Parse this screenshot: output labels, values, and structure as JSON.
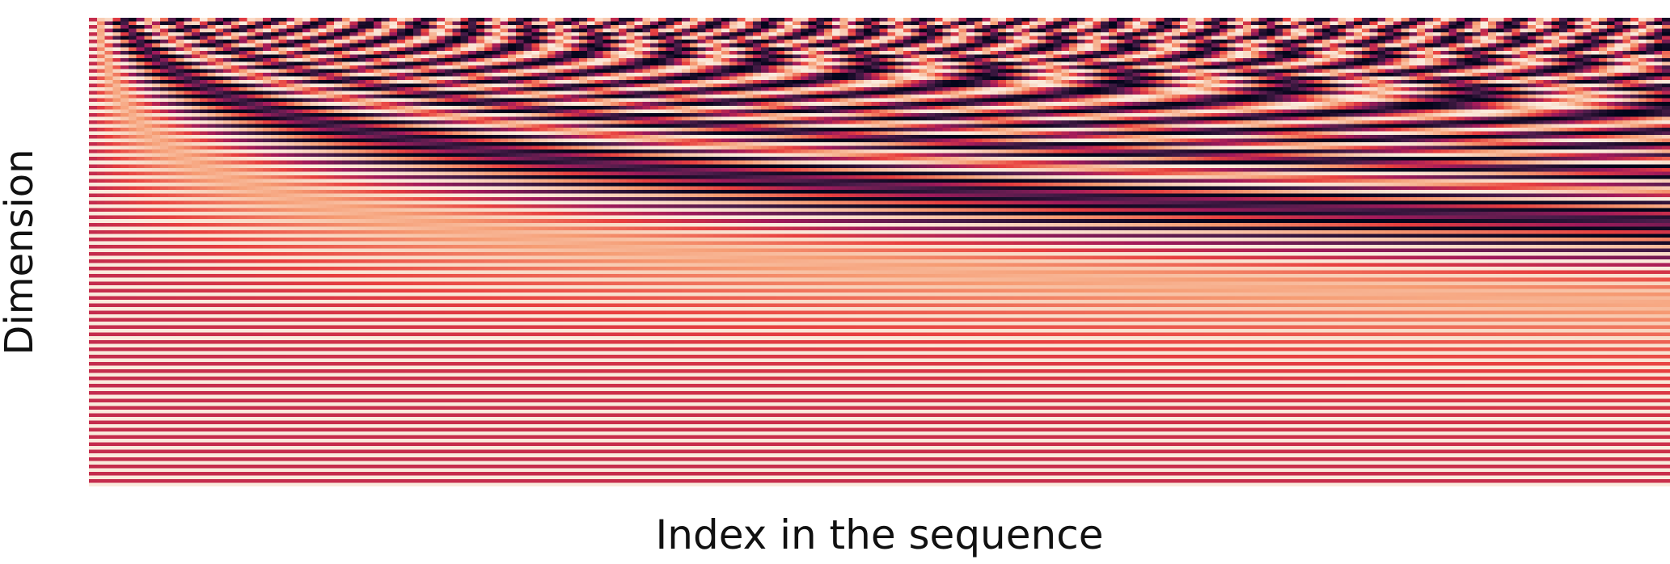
{
  "chart_data": {
    "type": "heatmap",
    "title": "",
    "xlabel": "Index in the sequence",
    "ylabel": "Dimension",
    "values_description_type": "positional-encoding",
    "n_positions": 200,
    "n_dimensions": 128,
    "frequency_base": 10000,
    "interleave": "sin-even-cos-odd",
    "value_range": [
      -1,
      1
    ],
    "colormap": [
      "#03051a",
      "#4c1d4b",
      "#a11a5b",
      "#e83f3f",
      "#f69c73",
      "#faebdd"
    ],
    "grid": false,
    "legend": "none"
  }
}
